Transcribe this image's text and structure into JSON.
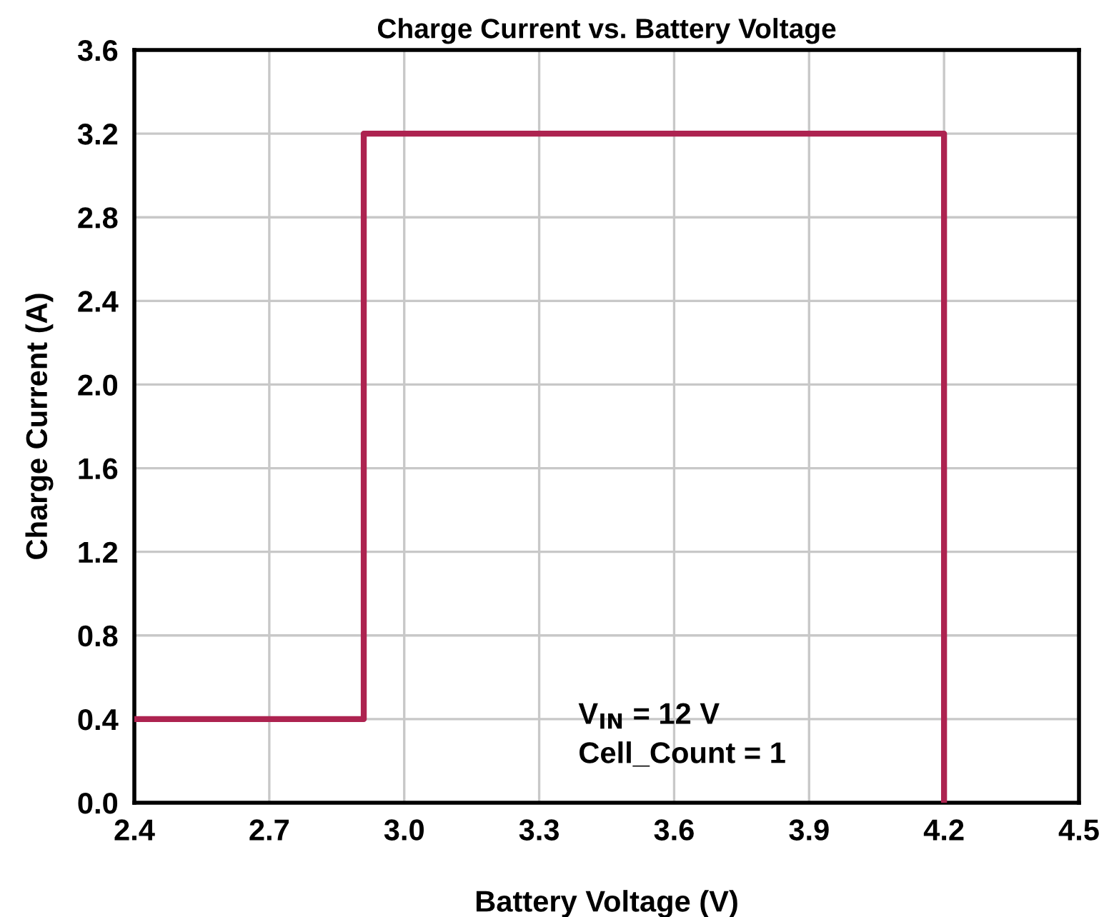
{
  "chart_data": {
    "type": "line",
    "title": "Charge Current vs. Battery Voltage",
    "xlabel": "Battery Voltage (V)",
    "ylabel": "Charge Current (A)",
    "x": [
      2.4,
      2.91,
      2.91,
      4.2,
      4.2
    ],
    "series": [
      {
        "color": "#ad2350",
        "values": [
          0.4,
          0.4,
          3.2,
          3.2,
          0.0
        ]
      }
    ],
    "xlim": [
      2.4,
      4.5
    ],
    "xticks": [
      2.4,
      2.7,
      {
        "value": 3,
        "label": "3.0"
      },
      3.3,
      3.6,
      3.9,
      4.2,
      4.5
    ],
    "ylim": [
      0.0,
      3.6
    ],
    "yticks": [
      {
        "value": 0,
        "label": "0.0"
      },
      0.4,
      0.8,
      1.2,
      1.6,
      {
        "value": 2,
        "label": "2.0"
      },
      2.4,
      2.8,
      3.2,
      3.6
    ],
    "grid": true,
    "marker": "none",
    "line_style": "solid",
    "legend": false,
    "annotations": [
      "V$_{IN}$ = 12 V",
      "Cell_Count = 1"
    ]
  }
}
